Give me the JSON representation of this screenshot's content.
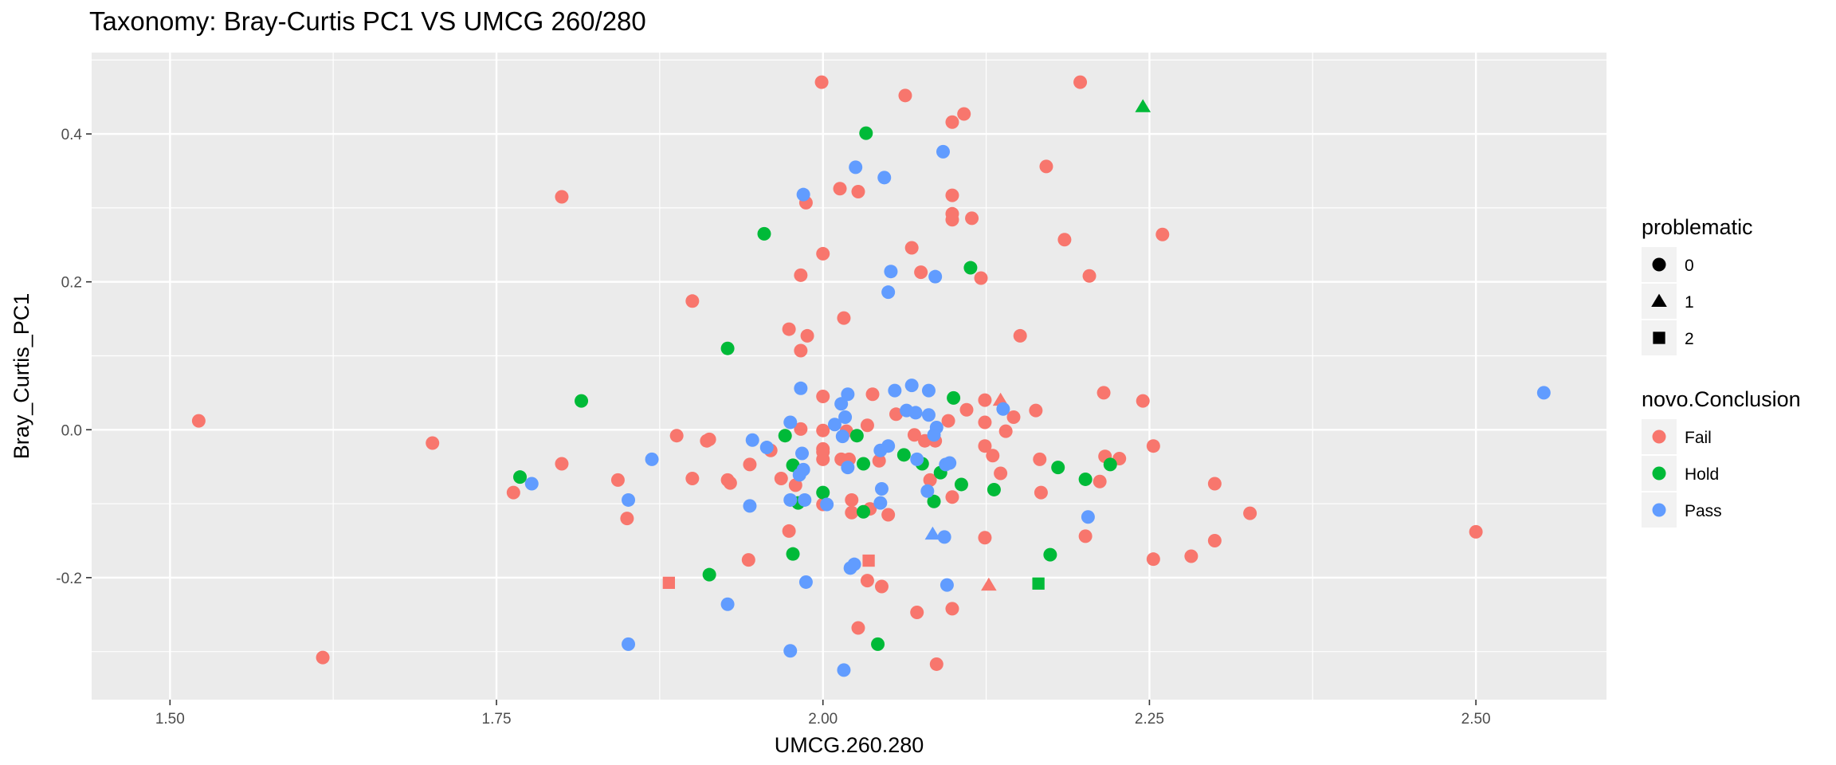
{
  "chart_data": {
    "type": "scatter",
    "title": "Taxonomy: Bray-Curtis PC1 VS UMCG 260/280",
    "xlabel": "UMCG.260.280",
    "ylabel": "Bray_Curtis_PC1",
    "xlim": [
      1.44,
      2.6
    ],
    "ylim": [
      -0.365,
      0.51
    ],
    "xticks": [
      1.5,
      1.75,
      2.0,
      2.25,
      2.5
    ],
    "xtick_labels": [
      "1.50",
      "1.75",
      "2.00",
      "2.25",
      "2.50"
    ],
    "yticks": [
      -0.2,
      0.0,
      0.2,
      0.4
    ],
    "ytick_labels": [
      "-0.2",
      "0.0",
      "0.2",
      "0.4"
    ],
    "grid": true,
    "legend_position": "right",
    "legends": [
      {
        "title": "problematic",
        "kind": "shape",
        "entries": [
          {
            "label": "0",
            "shape": "circle"
          },
          {
            "label": "1",
            "shape": "triangle"
          },
          {
            "label": "2",
            "shape": "square"
          }
        ]
      },
      {
        "title": "novo.Conclusion",
        "kind": "color",
        "entries": [
          {
            "label": "Fail",
            "color": "#F8766D"
          },
          {
            "label": "Hold",
            "color": "#00BA38"
          },
          {
            "label": "Pass",
            "color": "#619CFF"
          }
        ]
      }
    ],
    "series": [
      {
        "name": "Fail",
        "color": "#F8766D",
        "points": [
          {
            "x": 1.522,
            "y": 0.012,
            "s": 0
          },
          {
            "x": 1.617,
            "y": -0.308,
            "s": 0
          },
          {
            "x": 1.701,
            "y": -0.018,
            "s": 0
          },
          {
            "x": 1.763,
            "y": -0.085,
            "s": 0
          },
          {
            "x": 1.8,
            "y": 0.315,
            "s": 0
          },
          {
            "x": 1.8,
            "y": -0.046,
            "s": 0
          },
          {
            "x": 1.843,
            "y": -0.068,
            "s": 0
          },
          {
            "x": 1.85,
            "y": -0.12,
            "s": 0
          },
          {
            "x": 1.888,
            "y": -0.008,
            "s": 0
          },
          {
            "x": 1.9,
            "y": 0.174,
            "s": 0
          },
          {
            "x": 1.9,
            "y": -0.066,
            "s": 0
          },
          {
            "x": 1.911,
            "y": -0.015,
            "s": 0
          },
          {
            "x": 1.913,
            "y": -0.013,
            "s": 0
          },
          {
            "x": 1.927,
            "y": -0.068,
            "s": 0
          },
          {
            "x": 1.929,
            "y": -0.072,
            "s": 0
          },
          {
            "x": 1.943,
            "y": -0.176,
            "s": 0
          },
          {
            "x": 1.944,
            "y": -0.047,
            "s": 0
          },
          {
            "x": 1.96,
            "y": -0.028,
            "s": 0
          },
          {
            "x": 1.968,
            "y": -0.066,
            "s": 0
          },
          {
            "x": 1.974,
            "y": 0.136,
            "s": 0
          },
          {
            "x": 1.974,
            "y": -0.137,
            "s": 0
          },
          {
            "x": 1.979,
            "y": -0.075,
            "s": 0
          },
          {
            "x": 1.983,
            "y": 0.001,
            "s": 0
          },
          {
            "x": 1.983,
            "y": 0.209,
            "s": 0
          },
          {
            "x": 1.983,
            "y": 0.107,
            "s": 0
          },
          {
            "x": 1.987,
            "y": 0.307,
            "s": 0
          },
          {
            "x": 1.988,
            "y": 0.127,
            "s": 0
          },
          {
            "x": 1.999,
            "y": 0.47,
            "s": 0
          },
          {
            "x": 2.0,
            "y": 0.238,
            "s": 0
          },
          {
            "x": 2.0,
            "y": 0.045,
            "s": 0
          },
          {
            "x": 2.0,
            "y": -0.001,
            "s": 0
          },
          {
            "x": 2.0,
            "y": -0.026,
            "s": 0
          },
          {
            "x": 2.0,
            "y": -0.03,
            "s": 0
          },
          {
            "x": 2.0,
            "y": -0.04,
            "s": 0
          },
          {
            "x": 2.0,
            "y": -0.101,
            "s": 0
          },
          {
            "x": 2.013,
            "y": 0.326,
            "s": 0
          },
          {
            "x": 2.014,
            "y": -0.04,
            "s": 0
          },
          {
            "x": 2.016,
            "y": 0.151,
            "s": 0
          },
          {
            "x": 2.018,
            "y": -0.002,
            "s": 0
          },
          {
            "x": 2.02,
            "y": -0.04,
            "s": 0
          },
          {
            "x": 2.022,
            "y": -0.095,
            "s": 0
          },
          {
            "x": 2.022,
            "y": -0.112,
            "s": 0
          },
          {
            "x": 2.027,
            "y": 0.322,
            "s": 0
          },
          {
            "x": 2.027,
            "y": -0.268,
            "s": 0
          },
          {
            "x": 2.034,
            "y": 0.006,
            "s": 0
          },
          {
            "x": 2.034,
            "y": -0.204,
            "s": 0
          },
          {
            "x": 2.036,
            "y": -0.107,
            "s": 0
          },
          {
            "x": 2.038,
            "y": 0.048,
            "s": 0
          },
          {
            "x": 2.043,
            "y": -0.042,
            "s": 0
          },
          {
            "x": 2.045,
            "y": -0.212,
            "s": 0
          },
          {
            "x": 2.05,
            "y": -0.115,
            "s": 0
          },
          {
            "x": 2.056,
            "y": 0.021,
            "s": 0
          },
          {
            "x": 2.063,
            "y": 0.452,
            "s": 0
          },
          {
            "x": 2.068,
            "y": 0.246,
            "s": 0
          },
          {
            "x": 2.07,
            "y": -0.007,
            "s": 0
          },
          {
            "x": 2.072,
            "y": -0.247,
            "s": 0
          },
          {
            "x": 2.075,
            "y": 0.213,
            "s": 0
          },
          {
            "x": 2.078,
            "y": -0.015,
            "s": 0
          },
          {
            "x": 2.082,
            "y": -0.068,
            "s": 0
          },
          {
            "x": 2.086,
            "y": -0.015,
            "s": 0
          },
          {
            "x": 2.087,
            "y": -0.317,
            "s": 0
          },
          {
            "x": 2.096,
            "y": 0.012,
            "s": 0
          },
          {
            "x": 2.099,
            "y": 0.416,
            "s": 0
          },
          {
            "x": 2.099,
            "y": 0.317,
            "s": 0
          },
          {
            "x": 2.099,
            "y": 0.292,
            "s": 0
          },
          {
            "x": 2.099,
            "y": 0.284,
            "s": 0
          },
          {
            "x": 2.099,
            "y": -0.091,
            "s": 0
          },
          {
            "x": 2.099,
            "y": -0.242,
            "s": 0
          },
          {
            "x": 2.108,
            "y": 0.427,
            "s": 0
          },
          {
            "x": 2.11,
            "y": 0.027,
            "s": 0
          },
          {
            "x": 2.114,
            "y": 0.286,
            "s": 0
          },
          {
            "x": 2.121,
            "y": 0.205,
            "s": 0
          },
          {
            "x": 2.124,
            "y": 0.04,
            "s": 0
          },
          {
            "x": 2.124,
            "y": 0.01,
            "s": 0
          },
          {
            "x": 2.124,
            "y": -0.022,
            "s": 0
          },
          {
            "x": 2.124,
            "y": -0.146,
            "s": 0
          },
          {
            "x": 2.13,
            "y": -0.035,
            "s": 0
          },
          {
            "x": 2.136,
            "y": -0.059,
            "s": 0
          },
          {
            "x": 2.14,
            "y": -0.002,
            "s": 0
          },
          {
            "x": 2.146,
            "y": 0.017,
            "s": 0
          },
          {
            "x": 2.151,
            "y": 0.127,
            "s": 0
          },
          {
            "x": 2.163,
            "y": 0.026,
            "s": 0
          },
          {
            "x": 2.166,
            "y": -0.04,
            "s": 0
          },
          {
            "x": 2.167,
            "y": -0.085,
            "s": 0
          },
          {
            "x": 2.171,
            "y": 0.356,
            "s": 0
          },
          {
            "x": 2.185,
            "y": 0.257,
            "s": 0
          },
          {
            "x": 2.197,
            "y": 0.47,
            "s": 0
          },
          {
            "x": 2.201,
            "y": -0.144,
            "s": 0
          },
          {
            "x": 2.204,
            "y": 0.208,
            "s": 0
          },
          {
            "x": 2.212,
            "y": -0.07,
            "s": 0
          },
          {
            "x": 2.215,
            "y": 0.05,
            "s": 0
          },
          {
            "x": 2.216,
            "y": -0.036,
            "s": 0
          },
          {
            "x": 2.227,
            "y": -0.039,
            "s": 0
          },
          {
            "x": 2.245,
            "y": 0.039,
            "s": 0
          },
          {
            "x": 2.253,
            "y": -0.022,
            "s": 0
          },
          {
            "x": 2.253,
            "y": -0.175,
            "s": 0
          },
          {
            "x": 2.26,
            "y": 0.264,
            "s": 0
          },
          {
            "x": 2.282,
            "y": -0.171,
            "s": 0
          },
          {
            "x": 2.3,
            "y": -0.073,
            "s": 0
          },
          {
            "x": 2.3,
            "y": -0.15,
            "s": 0
          },
          {
            "x": 2.327,
            "y": -0.113,
            "s": 0
          },
          {
            "x": 2.5,
            "y": -0.138,
            "s": 0
          },
          {
            "x": 2.136,
            "y": 0.04,
            "s": 1
          },
          {
            "x": 2.127,
            "y": -0.21,
            "s": 1
          },
          {
            "x": 1.882,
            "y": -0.207,
            "s": 2
          },
          {
            "x": 2.035,
            "y": -0.177,
            "s": 2
          }
        ]
      },
      {
        "name": "Hold",
        "color": "#00BA38",
        "points": [
          {
            "x": 1.768,
            "y": -0.064,
            "s": 0
          },
          {
            "x": 1.815,
            "y": 0.039,
            "s": 0
          },
          {
            "x": 1.913,
            "y": -0.196,
            "s": 0
          },
          {
            "x": 1.927,
            "y": 0.11,
            "s": 0
          },
          {
            "x": 1.955,
            "y": 0.265,
            "s": 0
          },
          {
            "x": 1.971,
            "y": -0.008,
            "s": 0
          },
          {
            "x": 1.977,
            "y": -0.048,
            "s": 0
          },
          {
            "x": 1.977,
            "y": -0.168,
            "s": 0
          },
          {
            "x": 1.981,
            "y": -0.099,
            "s": 0
          },
          {
            "x": 2.0,
            "y": -0.085,
            "s": 0
          },
          {
            "x": 2.026,
            "y": -0.008,
            "s": 0
          },
          {
            "x": 2.031,
            "y": -0.046,
            "s": 0
          },
          {
            "x": 2.031,
            "y": -0.111,
            "s": 0
          },
          {
            "x": 2.033,
            "y": 0.401,
            "s": 0
          },
          {
            "x": 2.042,
            "y": -0.29,
            "s": 0
          },
          {
            "x": 2.062,
            "y": -0.034,
            "s": 0
          },
          {
            "x": 2.076,
            "y": -0.046,
            "s": 0
          },
          {
            "x": 2.085,
            "y": -0.097,
            "s": 0
          },
          {
            "x": 2.09,
            "y": -0.058,
            "s": 0
          },
          {
            "x": 2.1,
            "y": 0.043,
            "s": 0
          },
          {
            "x": 2.106,
            "y": -0.074,
            "s": 0
          },
          {
            "x": 2.113,
            "y": 0.219,
            "s": 0
          },
          {
            "x": 2.131,
            "y": -0.081,
            "s": 0
          },
          {
            "x": 2.174,
            "y": -0.169,
            "s": 0
          },
          {
            "x": 2.18,
            "y": -0.051,
            "s": 0
          },
          {
            "x": 2.201,
            "y": -0.067,
            "s": 0
          },
          {
            "x": 2.22,
            "y": -0.047,
            "s": 0
          },
          {
            "x": 2.245,
            "y": 0.437,
            "s": 1
          },
          {
            "x": 2.165,
            "y": -0.208,
            "s": 2
          }
        ]
      },
      {
        "name": "Pass",
        "color": "#619CFF",
        "points": [
          {
            "x": 1.777,
            "y": -0.073,
            "s": 0
          },
          {
            "x": 1.851,
            "y": -0.095,
            "s": 0
          },
          {
            "x": 1.851,
            "y": -0.29,
            "s": 0
          },
          {
            "x": 1.869,
            "y": -0.04,
            "s": 0
          },
          {
            "x": 1.927,
            "y": -0.236,
            "s": 0
          },
          {
            "x": 1.944,
            "y": -0.103,
            "s": 0
          },
          {
            "x": 1.946,
            "y": -0.014,
            "s": 0
          },
          {
            "x": 1.957,
            "y": -0.024,
            "s": 0
          },
          {
            "x": 1.975,
            "y": 0.01,
            "s": 0
          },
          {
            "x": 1.975,
            "y": -0.095,
            "s": 0
          },
          {
            "x": 1.975,
            "y": -0.299,
            "s": 0
          },
          {
            "x": 1.982,
            "y": -0.061,
            "s": 0
          },
          {
            "x": 1.983,
            "y": 0.056,
            "s": 0
          },
          {
            "x": 1.984,
            "y": -0.032,
            "s": 0
          },
          {
            "x": 1.985,
            "y": 0.318,
            "s": 0
          },
          {
            "x": 1.985,
            "y": -0.054,
            "s": 0
          },
          {
            "x": 1.986,
            "y": -0.095,
            "s": 0
          },
          {
            "x": 1.987,
            "y": -0.206,
            "s": 0
          },
          {
            "x": 2.003,
            "y": -0.101,
            "s": 0
          },
          {
            "x": 2.009,
            "y": 0.007,
            "s": 0
          },
          {
            "x": 2.014,
            "y": 0.035,
            "s": 0
          },
          {
            "x": 2.015,
            "y": -0.009,
            "s": 0
          },
          {
            "x": 2.016,
            "y": -0.325,
            "s": 0
          },
          {
            "x": 2.017,
            "y": 0.017,
            "s": 0
          },
          {
            "x": 2.019,
            "y": 0.048,
            "s": 0
          },
          {
            "x": 2.019,
            "y": -0.051,
            "s": 0
          },
          {
            "x": 2.021,
            "y": -0.187,
            "s": 0
          },
          {
            "x": 2.024,
            "y": -0.182,
            "s": 0
          },
          {
            "x": 2.025,
            "y": 0.355,
            "s": 0
          },
          {
            "x": 2.044,
            "y": -0.028,
            "s": 0
          },
          {
            "x": 2.044,
            "y": -0.099,
            "s": 0
          },
          {
            "x": 2.045,
            "y": -0.08,
            "s": 0
          },
          {
            "x": 2.047,
            "y": 0.341,
            "s": 0
          },
          {
            "x": 2.05,
            "y": -0.022,
            "s": 0
          },
          {
            "x": 2.05,
            "y": 0.186,
            "s": 0
          },
          {
            "x": 2.052,
            "y": 0.214,
            "s": 0
          },
          {
            "x": 2.055,
            "y": 0.053,
            "s": 0
          },
          {
            "x": 2.064,
            "y": 0.026,
            "s": 0
          },
          {
            "x": 2.068,
            "y": 0.06,
            "s": 0
          },
          {
            "x": 2.071,
            "y": 0.023,
            "s": 0
          },
          {
            "x": 2.072,
            "y": -0.04,
            "s": 0
          },
          {
            "x": 2.08,
            "y": -0.083,
            "s": 0
          },
          {
            "x": 2.081,
            "y": 0.02,
            "s": 0
          },
          {
            "x": 2.081,
            "y": 0.053,
            "s": 0
          },
          {
            "x": 2.085,
            "y": -0.007,
            "s": 0
          },
          {
            "x": 2.086,
            "y": 0.207,
            "s": 0
          },
          {
            "x": 2.087,
            "y": 0.003,
            "s": 0
          },
          {
            "x": 2.092,
            "y": 0.376,
            "s": 0
          },
          {
            "x": 2.093,
            "y": -0.145,
            "s": 0
          },
          {
            "x": 2.094,
            "y": -0.047,
            "s": 0
          },
          {
            "x": 2.095,
            "y": -0.21,
            "s": 0
          },
          {
            "x": 2.097,
            "y": -0.045,
            "s": 0
          },
          {
            "x": 2.138,
            "y": 0.028,
            "s": 0
          },
          {
            "x": 2.203,
            "y": -0.118,
            "s": 0
          },
          {
            "x": 2.552,
            "y": 0.05,
            "s": 0
          },
          {
            "x": 2.084,
            "y": -0.141,
            "s": 1
          }
        ]
      }
    ]
  }
}
